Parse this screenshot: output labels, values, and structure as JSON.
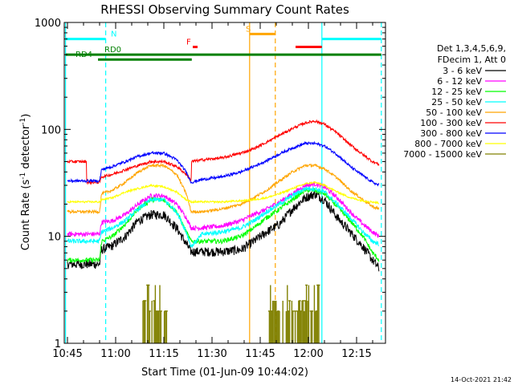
{
  "chart_data": {
    "type": "line",
    "title": "RHESSI Observing Summary Count Rates",
    "xlabel": "Start Time (01-Jun-09 10:44:02)",
    "ylabel": "Count Rate (s⁻¹ detector⁻¹)",
    "ylabel_parts": [
      "Count Rate (s",
      "-1",
      " detector",
      "-1",
      ")"
    ],
    "yscale": "log",
    "ylim": [
      1,
      1000
    ],
    "xlim_minutes": [
      -1,
      99
    ],
    "x_unit": "minutes after 10:45",
    "x_ticks": [
      {
        "label": "10:45",
        "minute": 0
      },
      {
        "label": "11:00",
        "minute": 15
      },
      {
        "label": "11:15",
        "minute": 30
      },
      {
        "label": "11:30",
        "minute": 45
      },
      {
        "label": "11:45",
        "minute": 60
      },
      {
        "label": "12:00",
        "minute": 75
      },
      {
        "label": "12:15",
        "minute": 90
      }
    ],
    "y_ticks": [
      {
        "label": "1",
        "value": 1
      },
      {
        "label": "10",
        "value": 10
      },
      {
        "label": "100",
        "value": 100
      },
      {
        "label": "1000",
        "value": 1000
      }
    ],
    "legend_title": [
      "Det 1,3,4,5,6,9,",
      "FDecim 1, Att 0"
    ],
    "legend_position": "right",
    "series": [
      {
        "name": "3 - 6 keV",
        "color": "#000000",
        "noise": 0.1,
        "points": [
          [
            0,
            5.5
          ],
          [
            10,
            5.5
          ],
          [
            10.6,
            7.5
          ],
          [
            14,
            8.2
          ],
          [
            18,
            10
          ],
          [
            22,
            14
          ],
          [
            26,
            16
          ],
          [
            30,
            16
          ],
          [
            34,
            12
          ],
          [
            37,
            8.5
          ],
          [
            38.5,
            7.2
          ],
          [
            42,
            7.2
          ],
          [
            48,
            7.2
          ],
          [
            54,
            7.5
          ],
          [
            58,
            9
          ],
          [
            62,
            11
          ],
          [
            66,
            13
          ],
          [
            70,
            18
          ],
          [
            74,
            23
          ],
          [
            77,
            25
          ],
          [
            80,
            22
          ],
          [
            84,
            15
          ],
          [
            88,
            11
          ],
          [
            92,
            8
          ],
          [
            95,
            6
          ],
          [
            97,
            5
          ]
        ]
      },
      {
        "name": "6 - 12 keV",
        "color": "#ff00ff",
        "noise": 0.05,
        "points": [
          [
            0,
            10.5
          ],
          [
            10,
            10.5
          ],
          [
            10.6,
            13.5
          ],
          [
            14,
            14
          ],
          [
            18,
            16
          ],
          [
            22,
            20
          ],
          [
            26,
            24
          ],
          [
            30,
            24
          ],
          [
            34,
            20
          ],
          [
            37,
            15
          ],
          [
            38.5,
            12
          ],
          [
            42,
            12
          ],
          [
            48,
            12.5
          ],
          [
            54,
            14
          ],
          [
            58,
            16
          ],
          [
            62,
            18
          ],
          [
            66,
            21
          ],
          [
            70,
            25
          ],
          [
            74,
            30
          ],
          [
            77,
            31
          ],
          [
            80,
            29
          ],
          [
            84,
            23
          ],
          [
            88,
            17
          ],
          [
            92,
            13
          ],
          [
            95,
            11
          ],
          [
            97,
            10
          ]
        ]
      },
      {
        "name": "12 - 25 keV",
        "color": "#00ff00",
        "noise": 0.05,
        "points": [
          [
            0,
            6
          ],
          [
            10,
            6
          ],
          [
            10.6,
            9
          ],
          [
            14,
            10
          ],
          [
            18,
            13
          ],
          [
            22,
            18
          ],
          [
            26,
            22
          ],
          [
            30,
            22
          ],
          [
            34,
            17
          ],
          [
            37,
            11
          ],
          [
            38.5,
            9
          ],
          [
            42,
            9
          ],
          [
            48,
            9
          ],
          [
            54,
            10
          ],
          [
            58,
            12
          ],
          [
            62,
            15
          ],
          [
            66,
            18
          ],
          [
            70,
            22
          ],
          [
            74,
            27
          ],
          [
            77,
            27
          ],
          [
            80,
            25
          ],
          [
            84,
            19
          ],
          [
            88,
            14
          ],
          [
            92,
            10
          ],
          [
            95,
            7
          ],
          [
            97,
            6
          ]
        ]
      },
      {
        "name": "25 - 50 keV",
        "color": "#00ffff",
        "noise": 0.05,
        "points": [
          [
            0,
            9
          ],
          [
            10,
            9
          ],
          [
            10.6,
            11
          ],
          [
            14,
            12
          ],
          [
            18,
            14
          ],
          [
            22,
            18
          ],
          [
            26,
            22
          ],
          [
            30,
            22
          ],
          [
            34,
            17
          ],
          [
            37,
            11
          ],
          [
            38.5,
            8
          ],
          [
            42,
            10.5
          ],
          [
            48,
            11
          ],
          [
            54,
            12
          ],
          [
            58,
            14
          ],
          [
            62,
            17
          ],
          [
            66,
            20
          ],
          [
            70,
            24
          ],
          [
            74,
            28
          ],
          [
            77,
            28
          ],
          [
            80,
            26
          ],
          [
            84,
            20
          ],
          [
            88,
            15
          ],
          [
            92,
            11
          ],
          [
            95,
            9
          ],
          [
            97,
            8.5
          ]
        ]
      },
      {
        "name": "50 - 100 keV",
        "color": "#ffa500",
        "noise": 0.03,
        "points": [
          [
            0,
            17
          ],
          [
            10,
            17
          ],
          [
            10.6,
            25
          ],
          [
            14,
            27
          ],
          [
            18,
            32
          ],
          [
            22,
            40
          ],
          [
            26,
            46
          ],
          [
            30,
            46
          ],
          [
            34,
            38
          ],
          [
            37,
            25
          ],
          [
            38.5,
            17
          ],
          [
            42,
            17
          ],
          [
            48,
            18
          ],
          [
            54,
            20
          ],
          [
            58,
            23
          ],
          [
            62,
            27
          ],
          [
            66,
            33
          ],
          [
            70,
            40
          ],
          [
            74,
            46
          ],
          [
            77,
            46
          ],
          [
            80,
            43
          ],
          [
            84,
            35
          ],
          [
            88,
            27
          ],
          [
            92,
            22
          ],
          [
            95,
            19
          ],
          [
            97,
            18
          ]
        ]
      },
      {
        "name": "100 - 300 keV",
        "color": "#ff0000",
        "noise": 0.03,
        "points": [
          [
            0,
            50
          ],
          [
            5.9,
            50
          ],
          [
            6,
            32
          ],
          [
            10,
            32
          ],
          [
            10.6,
            36
          ],
          [
            14,
            38
          ],
          [
            18,
            42
          ],
          [
            22,
            46
          ],
          [
            26,
            50
          ],
          [
            30,
            50
          ],
          [
            34,
            45
          ],
          [
            37,
            38
          ],
          [
            38.5,
            33
          ],
          [
            38.6,
            50
          ],
          [
            42,
            52
          ],
          [
            48,
            54
          ],
          [
            54,
            60
          ],
          [
            58,
            66
          ],
          [
            62,
            76
          ],
          [
            66,
            88
          ],
          [
            70,
            102
          ],
          [
            74,
            115
          ],
          [
            77,
            120
          ],
          [
            80,
            112
          ],
          [
            84,
            92
          ],
          [
            88,
            72
          ],
          [
            92,
            58
          ],
          [
            95,
            50
          ],
          [
            97,
            47
          ]
        ]
      },
      {
        "name": "300 - 800 keV",
        "color": "#0000ff",
        "noise": 0.03,
        "points": [
          [
            0,
            33
          ],
          [
            10,
            33
          ],
          [
            10.6,
            42
          ],
          [
            14,
            45
          ],
          [
            18,
            50
          ],
          [
            22,
            56
          ],
          [
            26,
            60
          ],
          [
            30,
            60
          ],
          [
            34,
            52
          ],
          [
            37,
            40
          ],
          [
            38.5,
            32
          ],
          [
            42,
            34
          ],
          [
            48,
            36
          ],
          [
            54,
            40
          ],
          [
            58,
            45
          ],
          [
            62,
            51
          ],
          [
            66,
            59
          ],
          [
            70,
            67
          ],
          [
            74,
            74
          ],
          [
            77,
            74
          ],
          [
            80,
            70
          ],
          [
            84,
            58
          ],
          [
            88,
            45
          ],
          [
            92,
            37
          ],
          [
            95,
            32
          ],
          [
            97,
            30
          ]
        ]
      },
      {
        "name": "800 - 7000 keV",
        "color": "#ffff00",
        "noise": 0.02,
        "points": [
          [
            0,
            21
          ],
          [
            10,
            21
          ],
          [
            10.6,
            22
          ],
          [
            14,
            23
          ],
          [
            18,
            26
          ],
          [
            22,
            28
          ],
          [
            26,
            30
          ],
          [
            30,
            29
          ],
          [
            34,
            26
          ],
          [
            37,
            22
          ],
          [
            38.5,
            21
          ],
          [
            42,
            21
          ],
          [
            48,
            21
          ],
          [
            54,
            21.5
          ],
          [
            58,
            22
          ],
          [
            62,
            23
          ],
          [
            66,
            25
          ],
          [
            70,
            28
          ],
          [
            74,
            31
          ],
          [
            77,
            32
          ],
          [
            80,
            30
          ],
          [
            84,
            26
          ],
          [
            88,
            23
          ],
          [
            92,
            21.5
          ],
          [
            95,
            21
          ],
          [
            97,
            20.5
          ]
        ]
      },
      {
        "name": "7000 - 15000 keV",
        "color": "#808000",
        "noise": 0,
        "points": []
      }
    ],
    "olive_bursts_minutes": [
      [
        23.5,
        31
      ],
      [
        62.5,
        78.5
      ]
    ],
    "markers": {
      "vlines": [
        {
          "minute": -0.6,
          "color": "#00ffff",
          "style": "solid"
        },
        {
          "minute": 11.9,
          "color": "#00ffff",
          "style": "dashed"
        },
        {
          "minute": 56.7,
          "color": "#ffa500",
          "style": "solid"
        },
        {
          "minute": 64.7,
          "color": "#ffa500",
          "style": "dashed"
        },
        {
          "minute": 79.2,
          "color": "#00ffff",
          "style": "solid"
        },
        {
          "minute": 97.7,
          "color": "#00ffff",
          "style": "dashed"
        }
      ],
      "hbars": [
        {
          "label": "N",
          "color": "#00ffff",
          "y": 700,
          "segments": [
            [
              -0.6,
              11.9
            ],
            [
              79.2,
              97.7
            ]
          ],
          "label_minute": 13.5
        },
        {
          "label": "S",
          "color": "#ffa500",
          "y": 780,
          "segments": [
            [
              56.7,
              64.7
            ]
          ],
          "label_minute": 55.5
        },
        {
          "label": "F",
          "color": "#ff0000",
          "y": 590,
          "segments": [
            [
              39,
              40.5
            ],
            [
              71,
              79.2
            ]
          ],
          "label_minute": 37
        },
        {
          "label": "RD0",
          "color": "#008000",
          "y": 500,
          "segments": [
            [
              -0.6,
              97.7
            ]
          ],
          "label_minute": 11.5
        },
        {
          "label": "RD4",
          "color": "#008000",
          "y": 450,
          "segments": [
            [
              9.5,
              38.7
            ]
          ],
          "label_minute": 2.5
        }
      ]
    }
  },
  "footer_date": "14-Oct-2021 21:42"
}
